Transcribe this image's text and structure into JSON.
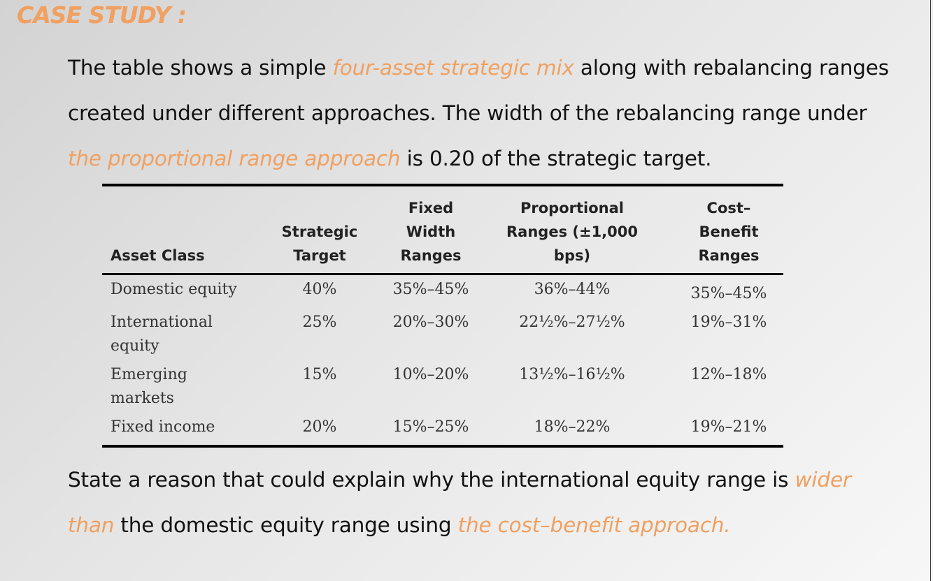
{
  "title": "CASE STUDY :",
  "intro": {
    "t1": "The table shows a simple ",
    "h1": "four-asset strategic mix",
    "t2": " along with rebalancing ranges created under different approaches. The width of the rebalancing range under ",
    "h2": "the proportional range approach",
    "t3": " is 0.20 of the strategic target."
  },
  "table": {
    "headers": [
      "Asset Class",
      "Strategic Target",
      "Fixed Width Ranges",
      "Proportional Ranges (±1,000 bps)",
      "Cost–Benefit Ranges"
    ],
    "rows": [
      [
        "Domestic equity",
        "40%",
        "35%–45%",
        "36%–44%",
        "35%–45%"
      ],
      [
        "International equity",
        "25%",
        "20%–30%",
        "22½%–27½%",
        "19%–31%"
      ],
      [
        "Emerging markets",
        "15%",
        "10%–20%",
        "13½%–16½%",
        "12%–18%"
      ],
      [
        "Fixed income",
        "20%",
        "15%–25%",
        "18%–22%",
        "19%–21%"
      ]
    ]
  },
  "question": {
    "t1": "State a reason that could explain why the international equity range is ",
    "h1": "wider than",
    "t2": " the domestic equity range using ",
    "h2": "the cost–benefit approach."
  },
  "colors": {
    "accent": "#f0a060",
    "text": "#111111"
  }
}
